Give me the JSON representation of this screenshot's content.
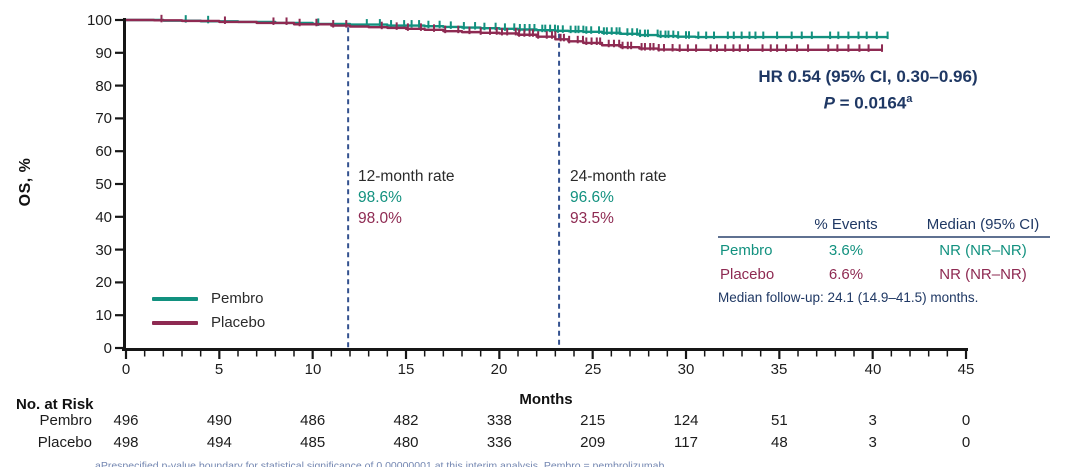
{
  "colors": {
    "pembro": "#12917F",
    "placebo": "#8E2A52",
    "navy": "#1F3864",
    "dash": "#33518F",
    "axis": "#161616"
  },
  "y_axis": {
    "label": "OS, %",
    "ticks": [
      100,
      90,
      80,
      70,
      60,
      50,
      40,
      30,
      20,
      10,
      0
    ]
  },
  "x_axis": {
    "label": "Months",
    "ticks": [
      0,
      5,
      10,
      15,
      20,
      25,
      30,
      35,
      40,
      45
    ]
  },
  "legend": [
    {
      "label": "Pembro"
    },
    {
      "label": "Placebo"
    }
  ],
  "annotations": {
    "rate12": {
      "title": "12-month rate",
      "pembro": "98.6%",
      "placebo": "98.0%"
    },
    "rate24": {
      "title": "24-month rate",
      "pembro": "96.6%",
      "placebo": "93.5%"
    },
    "hr_line1": "HR 0.54 (95% CI, 0.30–0.96)",
    "p_label": "P",
    "p_rest": " = 0.0164",
    "p_sup": "a"
  },
  "summary_table": {
    "header_events": "% Events",
    "header_median": "Median (95% CI)",
    "rows": [
      {
        "name": "Pembro",
        "events": "3.6%",
        "median": "NR (NR–NR)"
      },
      {
        "name": "Placebo",
        "events": "6.6%",
        "median": "NR (NR–NR)"
      }
    ],
    "note": "Median follow-up: 24.1 (14.9–41.5) months."
  },
  "risk_table": {
    "title": "No. at Risk",
    "months": [
      0,
      5,
      10,
      15,
      20,
      25,
      30,
      35,
      40,
      45
    ],
    "rows": [
      {
        "name": "Pembro",
        "values": [
          "496",
          "490",
          "486",
          "482",
          "338",
          "215",
          "124",
          "51",
          "3",
          "0"
        ]
      },
      {
        "name": "Placebo",
        "values": [
          "498",
          "494",
          "485",
          "480",
          "336",
          "209",
          "117",
          "48",
          "3",
          "0"
        ]
      }
    ]
  },
  "footnote": "aPrespecified p-value boundary for statistical significance of 0.00000001 at this interim analysis. Pembro = pembrolizumab.",
  "chart_data": {
    "type": "line",
    "subtype": "kaplan-meier-step",
    "title": "",
    "xlabel": "Months",
    "ylabel": "OS, %",
    "xlim": [
      0,
      45
    ],
    "ylim": [
      0,
      100
    ],
    "x_major_tick": 5,
    "x_minor_tick": 1,
    "y_major_tick": 10,
    "grid": false,
    "legend_position": "inside-lower-left",
    "reference_lines": [
      {
        "month": 11.9,
        "top_pct": 97.8,
        "style": "dashed",
        "meaning": "12-month timepoint"
      },
      {
        "month": 23.2,
        "top_pct": 95.8,
        "style": "dashed",
        "meaning": "24-month timepoint"
      }
    ],
    "series": [
      {
        "name": "Pembro",
        "color_key": "pembro",
        "rate_12mo": 98.6,
        "rate_24mo": 96.6,
        "points": [
          [
            0,
            100
          ],
          [
            2,
            99.8
          ],
          [
            4,
            99.6
          ],
          [
            6,
            99.4
          ],
          [
            8,
            99.1
          ],
          [
            10,
            98.8
          ],
          [
            12,
            98.6
          ],
          [
            14,
            98.3
          ],
          [
            16,
            98.1
          ],
          [
            17,
            97.9
          ],
          [
            18,
            97.7
          ],
          [
            19,
            97.5
          ],
          [
            20,
            97.3
          ],
          [
            21,
            97.1
          ],
          [
            22,
            96.9
          ],
          [
            23,
            96.7
          ],
          [
            23.7,
            96.6
          ],
          [
            24.5,
            96.4
          ],
          [
            25.5,
            96.1
          ],
          [
            26.5,
            95.8
          ],
          [
            27.5,
            95.4
          ],
          [
            28.5,
            95.1
          ],
          [
            29.5,
            94.9
          ],
          [
            30.5,
            94.8
          ],
          [
            40.8,
            94.8
          ]
        ],
        "censor_ticks": {
          "singles": [
            3.2,
            4.4,
            10.3,
            12.9,
            13.6,
            14.2,
            14.9,
            15.3,
            15.7,
            16.2,
            16.8,
            17.4,
            18.1,
            18.7,
            19.2,
            19.8,
            20.3,
            20.8,
            21.1,
            40.8
          ],
          "ranges": [
            [
              21.4,
              30.4,
              0.22
            ],
            [
              30.7,
              35.2,
              0.38
            ],
            [
              35.7,
              40.6,
              0.5
            ]
          ]
        }
      },
      {
        "name": "Placebo",
        "color_key": "placebo",
        "rate_12mo": 98.0,
        "rate_24mo": 93.5,
        "points": [
          [
            0,
            100
          ],
          [
            1.5,
            99.9
          ],
          [
            3,
            99.7
          ],
          [
            5,
            99.4
          ],
          [
            7,
            99.1
          ],
          [
            9,
            98.7
          ],
          [
            11,
            98.3
          ],
          [
            12,
            98.0
          ],
          [
            13,
            97.8
          ],
          [
            14,
            97.6
          ],
          [
            15,
            97.3
          ],
          [
            16,
            97.0
          ],
          [
            17,
            96.6
          ],
          [
            18,
            96.3
          ],
          [
            19,
            96.1
          ],
          [
            20,
            95.9
          ],
          [
            21,
            95.5
          ],
          [
            22,
            94.9
          ],
          [
            23,
            94.1
          ],
          [
            23.7,
            93.5
          ],
          [
            24.5,
            93.0
          ],
          [
            25.5,
            92.3
          ],
          [
            26.5,
            91.7
          ],
          [
            27.5,
            91.3
          ],
          [
            28.5,
            91.0
          ],
          [
            29.5,
            90.9
          ],
          [
            40.5,
            90.9
          ]
        ],
        "censor_ticks": {
          "singles": [
            1.9,
            5.3,
            7.9,
            8.6,
            9.3,
            10.2,
            11.1,
            11.8,
            13.7,
            14.5,
            15.1,
            15.8,
            16.5,
            17.1,
            17.8,
            18.4,
            19.0,
            19.5,
            40.5
          ],
          "ranges": [
            [
              19.9,
              29.3,
              0.24
            ],
            [
              29.7,
              34.9,
              0.4
            ],
            [
              35.4,
              40.3,
              0.55
            ]
          ]
        }
      }
    ],
    "stats": {
      "hr": "0.54",
      "hr_ci": "0.30–0.96",
      "p_value": "0.0164",
      "pembro_events_pct": "3.6%",
      "placebo_events_pct": "6.6%",
      "pembro_median": "NR (NR–NR)",
      "placebo_median": "NR (NR–NR)",
      "median_followup": "24.1 (14.9–41.5) months"
    }
  }
}
